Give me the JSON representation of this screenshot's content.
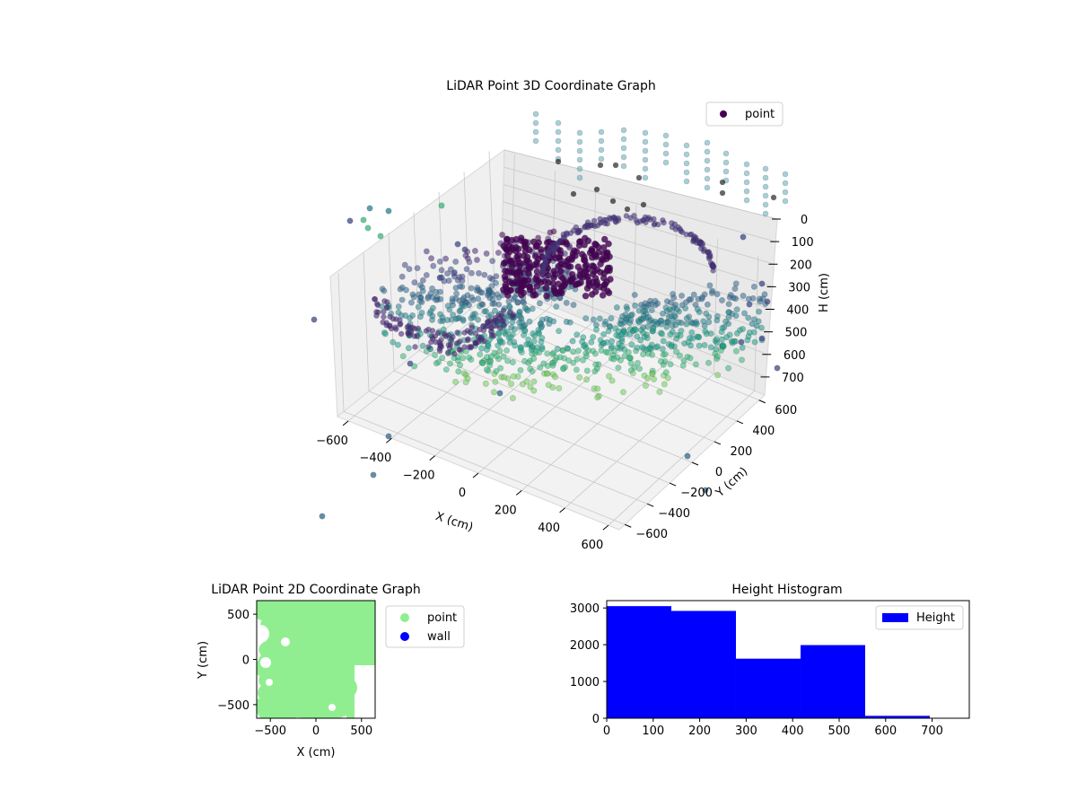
{
  "chart_data": [
    {
      "type": "scatter",
      "projection": "3d",
      "title": "LiDAR Point 3D Coordinate Graph",
      "xlabel": "X (cm)",
      "ylabel": "Y (cm)",
      "zlabel": "H (cm)",
      "xticks": [
        -600,
        -400,
        -200,
        0,
        200,
        400,
        600
      ],
      "yticks": [
        -600,
        -400,
        -200,
        0,
        200,
        400,
        600
      ],
      "zticks": [
        0,
        100,
        200,
        300,
        400,
        500,
        600,
        700
      ],
      "xlim": [
        -650,
        650
      ],
      "ylim": [
        -650,
        650
      ],
      "zlim": [
        0,
        780
      ],
      "z_inverted": true,
      "grid": true,
      "legend": {
        "location": "upper right",
        "entries": [
          {
            "label": "point",
            "color": "#440154"
          }
        ]
      },
      "colormap": "viridis",
      "series": [
        {
          "name": "point",
          "description_values": "dense cloud of ~10000 LiDAR returns; color mapped by height (viridis)"
        }
      ]
    },
    {
      "type": "scatter",
      "title": "LiDAR Point 2D Coordinate Graph",
      "xlabel": "X (cm)",
      "ylabel": "Y (cm)",
      "xticks": [
        -500,
        0,
        500
      ],
      "yticks": [
        -500,
        0,
        500
      ],
      "xlim": [
        -650,
        650
      ],
      "ylim": [
        -650,
        650
      ],
      "legend": {
        "location": "outside right",
        "entries": [
          {
            "label": "point",
            "color": "#90ee90"
          },
          {
            "label": "wall",
            "color": "#0000ff"
          }
        ]
      },
      "series": [
        {
          "name": "point",
          "color": "#90ee90"
        },
        {
          "name": "wall",
          "color": "#0000ff"
        }
      ]
    },
    {
      "type": "bar",
      "subtype": "histogram",
      "title": "Height Histogram",
      "xlabel": "",
      "ylabel": "",
      "xticks": [
        0,
        100,
        200,
        300,
        400,
        500,
        600,
        700
      ],
      "yticks": [
        0,
        1000,
        2000,
        3000
      ],
      "xlim": [
        0,
        780
      ],
      "ylim": [
        0,
        3200
      ],
      "bin_edges": [
        0,
        139,
        278,
        417,
        556,
        695
      ],
      "values": [
        3050,
        2920,
        1620,
        1990,
        65
      ],
      "color": "#0000ff",
      "legend": {
        "location": "upper right",
        "entries": [
          {
            "label": "Height",
            "color": "#0000ff"
          }
        ]
      }
    }
  ]
}
